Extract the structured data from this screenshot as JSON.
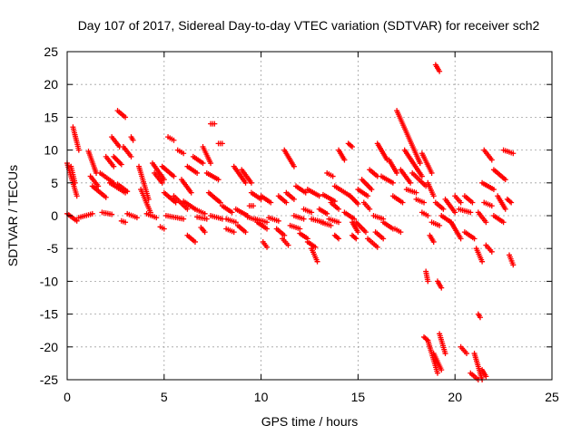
{
  "chart_data": {
    "type": "scatter",
    "title": "Day 107 of 2017, Sidereal Day-to-day VTEC variation (SDTVAR) for receiver sch2",
    "xlabel": "GPS time / hours",
    "ylabel": "SDTVAR / TECUs",
    "xlim": [
      0,
      25
    ],
    "ylim": [
      -25,
      25
    ],
    "xticks": [
      "0",
      "5",
      "10",
      "15",
      "20",
      "25"
    ],
    "yticks": [
      "25",
      "20",
      "15",
      "10",
      "5",
      "0",
      "-5",
      "-10",
      "-15",
      "-20",
      "-25"
    ],
    "grid": true,
    "marker": "plus",
    "series_color": "#ff0000",
    "tracks": [
      [
        0.0,
        8.0,
        0.5,
        3.0
      ],
      [
        0.3,
        13.5,
        0.6,
        10.0
      ],
      [
        0.2,
        7.5,
        0.4,
        5.0
      ],
      [
        0.0,
        0.3,
        0.5,
        -0.8
      ],
      [
        0.6,
        -0.3,
        1.3,
        0.3
      ],
      [
        1.1,
        9.8,
        1.5,
        6.5
      ],
      [
        1.2,
        6.0,
        1.6,
        4.5
      ],
      [
        1.3,
        4.5,
        2.0,
        2.8
      ],
      [
        1.8,
        0.5,
        2.3,
        0.2
      ],
      [
        2.0,
        9.0,
        2.4,
        7.5
      ],
      [
        1.7,
        6.5,
        2.4,
        5.0
      ],
      [
        2.2,
        5.0,
        3.0,
        3.5
      ],
      [
        2.3,
        12.0,
        2.7,
        10.5
      ],
      [
        2.6,
        16.0,
        3.0,
        15.0
      ],
      [
        2.4,
        9.0,
        2.8,
        7.8
      ],
      [
        2.6,
        4.8,
        3.1,
        3.7
      ],
      [
        2.9,
        10.5,
        3.3,
        9.0
      ],
      [
        2.8,
        -0.8,
        3.0,
        -1.0
      ],
      [
        3.1,
        0.3,
        3.6,
        -0.3
      ],
      [
        3.3,
        12.0,
        3.4,
        11.5
      ],
      [
        3.7,
        7.5,
        4.2,
        2.5
      ],
      [
        3.8,
        4.0,
        4.3,
        0.5
      ],
      [
        4.1,
        0.3,
        4.6,
        -0.3
      ],
      [
        4.4,
        8.0,
        5.0,
        5.5
      ],
      [
        4.5,
        6.5,
        4.9,
        5.0
      ],
      [
        4.8,
        -1.7,
        5.0,
        -2.0
      ],
      [
        4.9,
        7.5,
        5.5,
        6.0
      ],
      [
        5.0,
        3.5,
        5.6,
        2.0
      ],
      [
        5.1,
        0.0,
        6.0,
        -0.5
      ],
      [
        5.2,
        12.0,
        5.5,
        11.5
      ],
      [
        5.5,
        3.0,
        6.2,
        1.0
      ],
      [
        5.7,
        10.0,
        6.0,
        9.5
      ],
      [
        5.9,
        5.5,
        6.4,
        3.5
      ],
      [
        6.0,
        2.2,
        6.6,
        1.0
      ],
      [
        6.2,
        7.5,
        6.7,
        6.5
      ],
      [
        6.2,
        -3.0,
        6.6,
        -4.0
      ],
      [
        6.5,
        9.0,
        7.0,
        8.0
      ],
      [
        6.6,
        1.0,
        7.1,
        0.3
      ],
      [
        6.7,
        -0.2,
        7.2,
        -0.5
      ],
      [
        6.9,
        -1.8,
        7.1,
        -2.5
      ],
      [
        7.0,
        10.5,
        7.4,
        8.0
      ],
      [
        7.2,
        6.5,
        7.8,
        5.5
      ],
      [
        7.3,
        3.5,
        7.9,
        2.0
      ],
      [
        7.4,
        0.0,
        8.0,
        -0.5
      ],
      [
        7.4,
        14.0,
        7.6,
        14.0
      ],
      [
        7.8,
        11.0,
        8.0,
        11.0
      ],
      [
        8.0,
        1.5,
        8.5,
        0.5
      ],
      [
        8.2,
        -0.5,
        8.7,
        -1.0
      ],
      [
        8.2,
        -2.0,
        8.6,
        -2.5
      ],
      [
        8.6,
        7.5,
        9.2,
        5.0
      ],
      [
        8.7,
        1.0,
        9.3,
        0.0
      ],
      [
        8.8,
        -1.5,
        9.2,
        -2.5
      ],
      [
        9.0,
        7.0,
        9.5,
        5.0
      ],
      [
        9.3,
        -0.2,
        9.8,
        -0.7
      ],
      [
        9.4,
        1.5,
        9.6,
        1.5
      ],
      [
        9.5,
        3.5,
        10.0,
        2.5
      ],
      [
        9.7,
        -0.5,
        10.3,
        -1.0
      ],
      [
        9.8,
        -1.0,
        10.3,
        -2.0
      ],
      [
        10.0,
        3.0,
        10.5,
        2.0
      ],
      [
        10.1,
        -4.0,
        10.3,
        -4.8
      ],
      [
        10.4,
        -0.3,
        10.9,
        -0.8
      ],
      [
        10.8,
        -2.0,
        11.2,
        -3.0
      ],
      [
        10.9,
        3.0,
        11.3,
        2.0
      ],
      [
        11.1,
        -3.5,
        11.4,
        -4.5
      ],
      [
        11.2,
        10.0,
        11.7,
        7.5
      ],
      [
        11.3,
        3.5,
        11.7,
        2.5
      ],
      [
        11.5,
        -1.5,
        12.0,
        -2.0
      ],
      [
        11.7,
        0.0,
        12.2,
        -0.5
      ],
      [
        11.8,
        4.5,
        12.3,
        3.5
      ],
      [
        12.0,
        -2.7,
        12.4,
        -3.5
      ],
      [
        12.2,
        1.0,
        12.6,
        0.5
      ],
      [
        12.4,
        4.0,
        13.0,
        3.0
      ],
      [
        12.4,
        -4.0,
        12.8,
        -4.8
      ],
      [
        12.6,
        -5.0,
        12.9,
        -7.0
      ],
      [
        12.6,
        -0.5,
        13.2,
        -1.0
      ],
      [
        13.0,
        1.0,
        13.4,
        0.3
      ],
      [
        13.1,
        -1.0,
        13.6,
        -1.5
      ],
      [
        13.2,
        3.2,
        13.8,
        2.2
      ],
      [
        13.4,
        6.5,
        13.7,
        6.0
      ],
      [
        13.5,
        -0.5,
        14.0,
        -1.0
      ],
      [
        13.6,
        2.0,
        14.0,
        1.0
      ],
      [
        13.8,
        -3.0,
        14.0,
        -3.5
      ],
      [
        13.8,
        4.5,
        14.6,
        3.0
      ],
      [
        14.0,
        10.0,
        14.3,
        8.5
      ],
      [
        14.3,
        0.5,
        14.8,
        -0.5
      ],
      [
        14.5,
        11.0,
        14.7,
        10.5
      ],
      [
        14.6,
        3.0,
        15.0,
        1.8
      ],
      [
        14.7,
        -1.0,
        15.0,
        -2.5
      ],
      [
        14.7,
        -3.0,
        14.9,
        -3.5
      ],
      [
        14.9,
        -1.0,
        15.4,
        -2.5
      ],
      [
        15.0,
        4.0,
        15.5,
        3.0
      ],
      [
        15.2,
        5.5,
        15.7,
        4.0
      ],
      [
        15.3,
        2.0,
        15.6,
        1.0
      ],
      [
        15.5,
        -3.5,
        16.0,
        -4.8
      ],
      [
        15.6,
        7.0,
        16.0,
        6.0
      ],
      [
        15.8,
        0.0,
        16.3,
        -0.5
      ],
      [
        15.9,
        -2.5,
        16.3,
        -3.5
      ],
      [
        16.0,
        11.0,
        16.5,
        8.5
      ],
      [
        16.2,
        6.0,
        16.8,
        5.0
      ],
      [
        16.3,
        -1.0,
        16.8,
        -2.0
      ],
      [
        16.6,
        8.5,
        17.0,
        6.5
      ],
      [
        16.8,
        3.0,
        17.3,
        2.0
      ],
      [
        16.9,
        -2.0,
        17.2,
        -2.5
      ],
      [
        17.0,
        16.0,
        18.2,
        8.0
      ],
      [
        17.2,
        7.0,
        17.7,
        5.0
      ],
      [
        17.4,
        10.0,
        18.3,
        6.0
      ],
      [
        17.5,
        4.0,
        18.0,
        3.5
      ],
      [
        17.8,
        6.5,
        18.5,
        4.5
      ],
      [
        18.0,
        2.5,
        18.4,
        2.0
      ],
      [
        18.3,
        9.5,
        18.8,
        6.5
      ],
      [
        18.3,
        0.5,
        18.6,
        0.0
      ],
      [
        18.4,
        -18.5,
        18.6,
        -19.0
      ],
      [
        18.5,
        -8.5,
        18.6,
        -10.0
      ],
      [
        18.6,
        -19.0,
        19.1,
        -24.0
      ],
      [
        18.6,
        5.0,
        18.9,
        3.0
      ],
      [
        18.7,
        -3.0,
        18.9,
        -4.0
      ],
      [
        18.8,
        -1.0,
        19.2,
        -1.5
      ],
      [
        18.9,
        -21.0,
        19.3,
        -23.5
      ],
      [
        19.0,
        2.0,
        19.4,
        1.0
      ],
      [
        19.0,
        23.0,
        19.2,
        22.0
      ],
      [
        19.1,
        -10.0,
        19.3,
        -11.0
      ],
      [
        19.2,
        -18.0,
        19.5,
        -21.0
      ],
      [
        19.3,
        0.0,
        19.8,
        -1.0
      ],
      [
        19.5,
        2.5,
        20.0,
        0.5
      ],
      [
        19.8,
        -1.0,
        20.3,
        -3.5
      ],
      [
        20.0,
        3.0,
        20.3,
        2.0
      ],
      [
        20.2,
        1.0,
        20.8,
        0.5
      ],
      [
        20.5,
        3.0,
        20.9,
        2.0
      ],
      [
        20.3,
        -20.0,
        20.6,
        -21.0
      ],
      [
        20.5,
        -2.5,
        21.0,
        -3.5
      ],
      [
        20.8,
        -24.0,
        21.2,
        -25.0
      ],
      [
        21.0,
        -21.0,
        21.4,
        -25.0
      ],
      [
        21.1,
        -5.0,
        21.4,
        -7.0
      ],
      [
        21.2,
        -15.0,
        21.3,
        -15.5
      ],
      [
        21.2,
        0.5,
        21.6,
        -1.0
      ],
      [
        21.4,
        -23.5,
        21.6,
        -24.5
      ],
      [
        21.4,
        5.0,
        22.0,
        4.0
      ],
      [
        21.5,
        2.0,
        21.9,
        1.5
      ],
      [
        21.5,
        10.0,
        21.9,
        8.5
      ],
      [
        21.6,
        -4.5,
        21.9,
        -5.5
      ],
      [
        22.0,
        0.0,
        22.5,
        -1.0
      ],
      [
        22.0,
        7.0,
        22.6,
        5.5
      ],
      [
        22.2,
        3.0,
        22.6,
        1.0
      ],
      [
        22.5,
        10.0,
        23.0,
        9.5
      ],
      [
        22.8,
        -6.0,
        23.0,
        -7.5
      ],
      [
        22.7,
        2.5,
        22.9,
        2.0
      ]
    ]
  }
}
